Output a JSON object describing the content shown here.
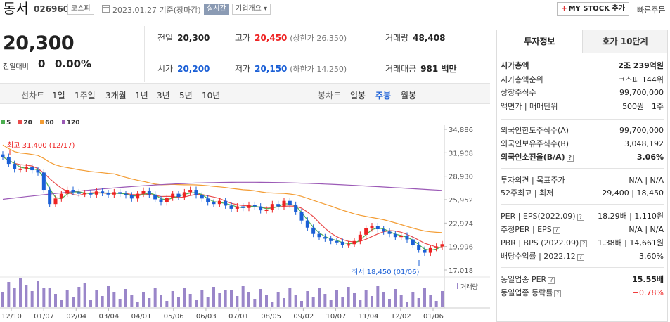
{
  "header": {
    "stock_name": "동서",
    "stock_code": "026960",
    "market": "코스피",
    "date_text": "2023.01.27  기준(장마감)",
    "realtime": "실시간",
    "company_info": "기업개요",
    "my_stock": "MY STOCK 추가",
    "quick_order": "빠른주문"
  },
  "price": {
    "current": "20,300",
    "change_label": "전일대비",
    "change_value": "0",
    "change_pct": "0.00%"
  },
  "stats": {
    "prev_close_label": "전일",
    "prev_close": "20,300",
    "high_label": "고가",
    "high": "20,450",
    "upper_limit": "(상한가 26,350)",
    "volume_label": "거래량",
    "volume": "48,408",
    "open_label": "시가",
    "open": "20,200",
    "low_label": "저가",
    "low": "20,150",
    "lower_limit": "(하한가 14,250)",
    "amount_label": "거래대금",
    "amount": "981 백만"
  },
  "periods": {
    "line_chart": "선차트",
    "items": [
      "1일",
      "1주일",
      "3개월",
      "1년",
      "3년",
      "5년",
      "10년"
    ],
    "candle_chart": "봉차트",
    "candles": [
      "일봉",
      "주봉",
      "월봉"
    ],
    "selected_candle": "주봉"
  },
  "chart_data": {
    "type": "candlestick",
    "moving_averages": [
      {
        "name": "5",
        "color": "#4caf50"
      },
      {
        "name": "20",
        "color": "#e94b4b"
      },
      {
        "name": "60",
        "color": "#f39c33"
      },
      {
        "name": "120",
        "color": "#9b59b6"
      }
    ],
    "y_ticks": [
      "34,886",
      "31,908",
      "28,930",
      "25,952",
      "22,974",
      "19,996",
      "17,018"
    ],
    "ylim": [
      17018,
      34886
    ],
    "x_labels": [
      "12/10",
      "01/07",
      "02/04",
      "03/04",
      "04/01",
      "05/06",
      "06/03",
      "07/01",
      "08/05",
      "09/02",
      "10/07",
      "11/04",
      "12/02",
      "01/06"
    ],
    "high_annotation": "최고 31,400 (12/17)",
    "low_annotation": "최저 18,450 (01/06)",
    "volume_label": "거래량",
    "closes": [
      31400,
      30500,
      29800,
      29900,
      30100,
      29700,
      29400,
      27200,
      25400,
      26100,
      26700,
      27200,
      26900,
      26700,
      26800,
      26600,
      27000,
      26800,
      26600,
      26900,
      26700,
      26500,
      26100,
      26700,
      27100,
      26600,
      26000,
      25600,
      26200,
      26700,
      26300,
      26900,
      27200,
      26500,
      26100,
      25600,
      25400,
      25800,
      25200,
      24800,
      25100,
      24900,
      25300,
      25100,
      24600,
      24700,
      25400,
      25100,
      25800,
      25300,
      24400,
      23300,
      22400,
      21600,
      21200,
      21000,
      20700,
      20600,
      20200,
      20300,
      20700,
      21500,
      22300,
      22600,
      22200,
      21900,
      21600,
      21200,
      21400,
      20900,
      20200,
      19600,
      19200,
      19800,
      20000,
      20300
    ]
  },
  "panel": {
    "tab_info": "투자정보",
    "tab_quote": "호가 10단계",
    "market_cap_label": "시가총액",
    "market_cap": "2조 239억원",
    "cap_rank_label": "시가총액순위",
    "cap_rank": "코스피 144위",
    "shares_label": "상장주식수",
    "shares": "99,700,000",
    "par_label": "액면가 | 매매단위",
    "par": "500원  |  1주",
    "foreign_limit_label": "외국인한도주식수(A)",
    "foreign_limit": "99,700,000",
    "foreign_hold_label": "외국인보유주식수(B)",
    "foreign_hold": "3,048,192",
    "foreign_ratio_label": "외국인소진율(B/A)",
    "foreign_ratio": "3.06%",
    "opinion_label": "투자의견 | 목표주가",
    "opinion": "N/A  |  N/A",
    "wk52_label": "52주최고 | 최저",
    "wk52": "29,400  |  18,450",
    "per_label": "PER | EPS(2022.09)",
    "per": "18.29배  |  1,110원",
    "est_per_label": "추정PER | EPS",
    "est_per": "N/A  |  N/A",
    "pbr_label": "PBR | BPS (2022.09)",
    "pbr": "1.38배  |  14,661원",
    "div_label": "배당수익률 | 2022.12",
    "div": "3.60%",
    "industry_per_label": "동일업종 PER",
    "industry_per": "15.55배",
    "industry_rate_label": "동일업종 등락률",
    "industry_rate": "+0.78%"
  }
}
